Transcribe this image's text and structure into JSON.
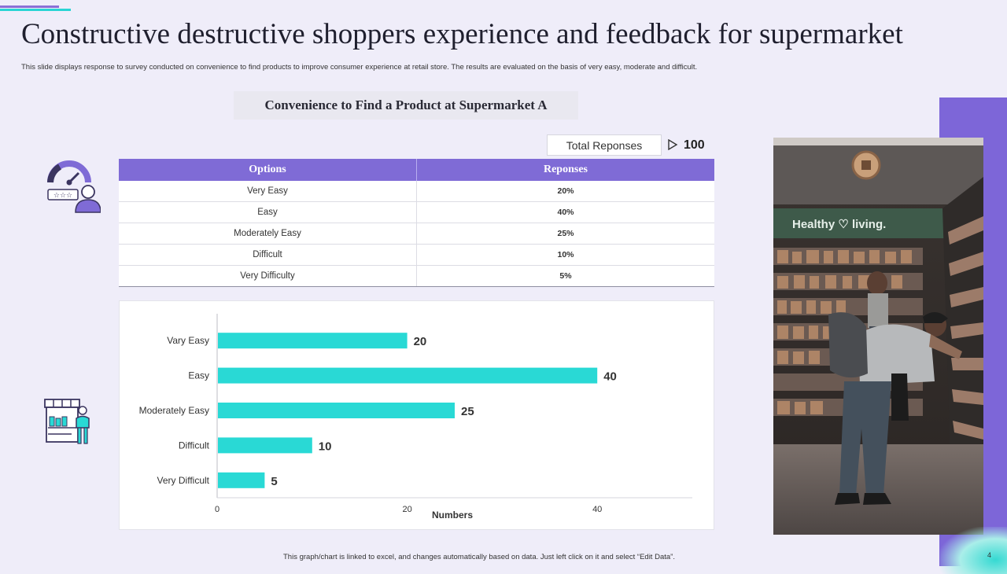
{
  "slide": {
    "title": "Constructive destructive shoppers experience and feedback for supermarket",
    "subtitle": "This slide displays response to survey conducted on convenience to find products to improve consumer experience at retail store. The results are evaluated on the basis of very easy, moderate and difficult.",
    "section_title": "Convenience to Find a Product at Supermarket A",
    "total_label": "Total Reponses",
    "total_value": "100",
    "footnote": "This graph/chart is linked to excel, and changes automatically based on data. Just left click on it and select “Edit Data”.",
    "page_number": "4"
  },
  "table": {
    "headers": [
      "Options",
      "Reponses"
    ],
    "rows": [
      [
        "Very Easy",
        "20%"
      ],
      [
        "Easy",
        "40%"
      ],
      [
        "Moderately Easy",
        "25%"
      ],
      [
        "Difficult",
        "10%"
      ],
      [
        "Very Difficulty",
        "5%"
      ]
    ]
  },
  "colors": {
    "accent_purple": "#7f6bd6",
    "bar_teal": "#29d9d5",
    "background": "#efedf9"
  },
  "icons": {
    "rating": "customer-rating-gauge-icon",
    "store": "store-shopper-icon"
  },
  "chart_data": {
    "type": "bar",
    "orientation": "horizontal",
    "categories": [
      "Vary Easy",
      "Easy",
      "Moderately Easy",
      "Difficult",
      "Very Difficult"
    ],
    "values": [
      20,
      40,
      25,
      10,
      5
    ],
    "xlabel": "Numbers",
    "ylabel": "",
    "xlim": [
      0,
      50
    ],
    "xticks": [
      0,
      20,
      40
    ],
    "grid": false,
    "legend": "none"
  }
}
